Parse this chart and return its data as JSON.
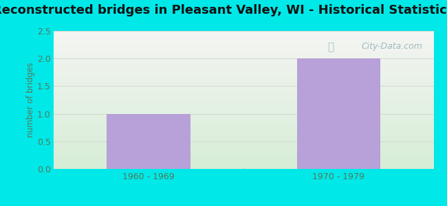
{
  "title": "Reconstructed bridges in Pleasant Valley, WI - Historical Statistics",
  "categories": [
    "1960 - 1969",
    "1970 - 1979"
  ],
  "values": [
    1,
    2
  ],
  "bar_color": "#b8a0d8",
  "ylabel": "number of bridges",
  "ylim": [
    0,
    2.5
  ],
  "yticks": [
    0,
    0.5,
    1,
    1.5,
    2,
    2.5
  ],
  "background_outer": "#00e8e8",
  "background_top": "#f5f5f2",
  "background_bottom": "#d8eed8",
  "grid_color": "#d0d8d0",
  "title_fontsize": 13,
  "title_color": "#111111",
  "axis_label_color": "#557755",
  "tick_label_color": "#557755",
  "watermark": "City-Data.com",
  "bar_positions": [
    0.25,
    0.75
  ],
  "bar_width": 0.22,
  "xlim": [
    0,
    1
  ]
}
